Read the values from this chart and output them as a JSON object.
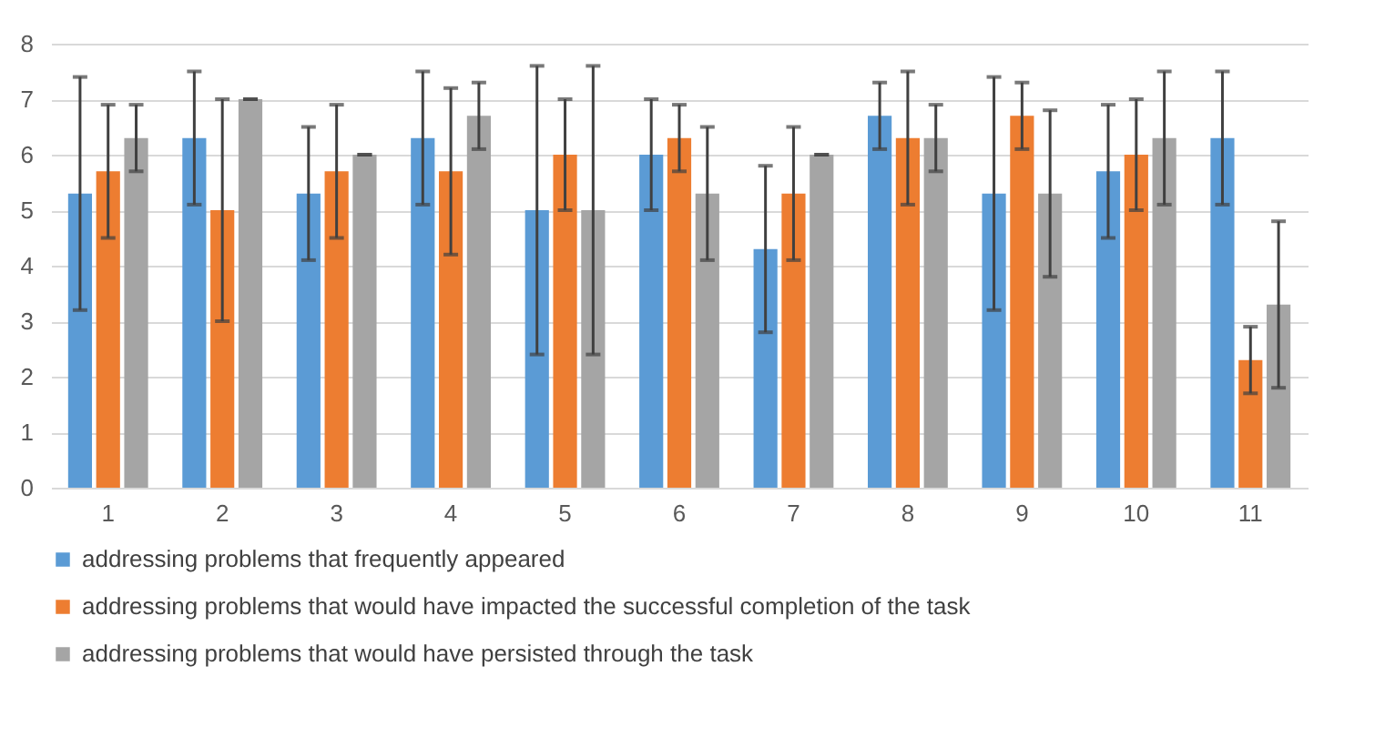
{
  "chart_data": {
    "type": "bar",
    "categories": [
      "1",
      "2",
      "3",
      "4",
      "5",
      "6",
      "7",
      "8",
      "9",
      "10",
      "11"
    ],
    "series": [
      {
        "name": "addressing problems that frequently appeared",
        "color": "#5b9bd5",
        "values": [
          5.3,
          6.3,
          5.3,
          6.3,
          5.0,
          6.0,
          4.3,
          6.7,
          5.3,
          5.7,
          6.3
        ],
        "errors": [
          [
            3.2,
            7.4
          ],
          [
            5.1,
            7.5
          ],
          [
            4.1,
            6.5
          ],
          [
            5.1,
            7.5
          ],
          [
            2.4,
            7.6
          ],
          [
            5.0,
            7.0
          ],
          [
            2.8,
            5.8
          ],
          [
            6.1,
            7.3
          ],
          [
            3.2,
            7.4
          ],
          [
            4.5,
            6.9
          ],
          [
            5.1,
            7.5
          ]
        ]
      },
      {
        "name": "addressing problems that would have impacted the successful completion of the task",
        "color": "#ed7d31",
        "values": [
          5.7,
          5.0,
          5.7,
          5.7,
          6.0,
          6.3,
          5.3,
          6.3,
          6.7,
          6.0,
          2.3
        ],
        "errors": [
          [
            4.5,
            6.9
          ],
          [
            3.0,
            7.0
          ],
          [
            4.5,
            6.9
          ],
          [
            4.2,
            7.2
          ],
          [
            5.0,
            7.0
          ],
          [
            5.7,
            6.9
          ],
          [
            4.1,
            6.5
          ],
          [
            5.1,
            7.5
          ],
          [
            6.1,
            7.3
          ],
          [
            5.0,
            7.0
          ],
          [
            1.7,
            2.9
          ]
        ]
      },
      {
        "name": "addressing problems that would have persisted through the task",
        "color": "#a5a5a5",
        "values": [
          6.3,
          7.0,
          6.0,
          6.7,
          5.0,
          5.3,
          6.0,
          6.3,
          5.3,
          6.3,
          3.3
        ],
        "errors": [
          [
            5.7,
            6.9
          ],
          [
            7.0,
            7.0
          ],
          [
            6.0,
            6.0
          ],
          [
            6.1,
            7.3
          ],
          [
            2.4,
            7.6
          ],
          [
            4.1,
            6.5
          ],
          [
            6.0,
            6.0
          ],
          [
            5.7,
            6.9
          ],
          [
            3.8,
            6.8
          ],
          [
            5.1,
            7.5
          ],
          [
            1.8,
            4.8
          ]
        ]
      }
    ],
    "ylim": [
      0,
      8
    ],
    "yticks": [
      0,
      1,
      2,
      3,
      4,
      5,
      6,
      7,
      8
    ],
    "grid": "y",
    "legend": "bottom"
  }
}
